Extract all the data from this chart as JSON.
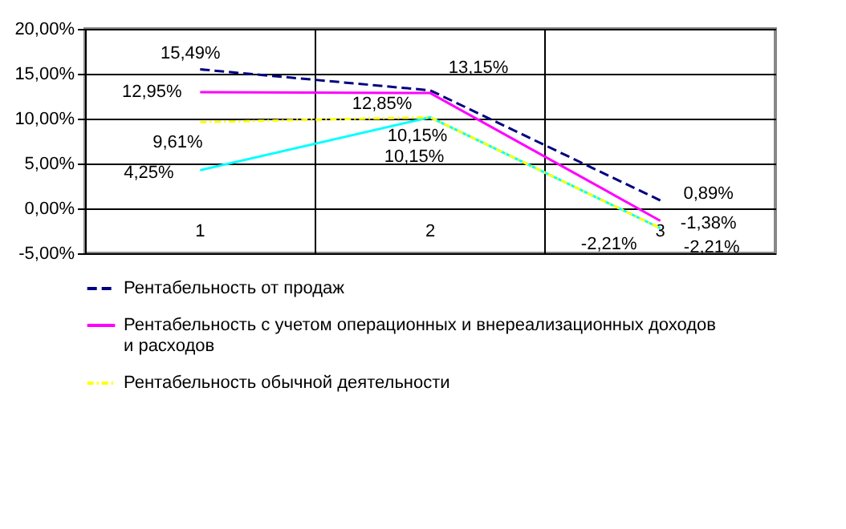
{
  "chart_data": {
    "type": "line",
    "categories": [
      "1",
      "2",
      "3"
    ],
    "series": [
      {
        "name": "Рентабельность от продаж",
        "color": "#000080",
        "line_style": "dashed",
        "values": [
          15.49,
          13.15,
          0.89
        ],
        "value_labels": [
          "15,49%",
          "13,15%",
          "0,89%"
        ]
      },
      {
        "name": "Рентабельность с учетом операционных и внереализационных доходов и расходов",
        "color": "#ff00ff",
        "line_style": "solid",
        "values": [
          12.95,
          12.85,
          -1.38
        ],
        "value_labels": [
          "12,95%",
          "12,85%",
          "-1,38%"
        ]
      },
      {
        "name": "Рентабельность обычной деятельности",
        "color": "#ffff00",
        "line_style": "dashdot",
        "values": [
          9.61,
          10.15,
          -2.21
        ],
        "value_labels": [
          "9,61%",
          "10,15%",
          "-2,21%"
        ]
      },
      {
        "color": "#00ffff",
        "line_style": "solid",
        "values": [
          4.25,
          10.15,
          -2.21
        ],
        "value_labels": [
          "4,25%",
          "10,15%",
          "-2,21%"
        ]
      }
    ],
    "ylim": [
      -5,
      20
    ],
    "yticks": [
      {
        "value": -5,
        "label": "-5,00%"
      },
      {
        "value": 0,
        "label": "0,00%"
      },
      {
        "value": 5,
        "label": "5,00%"
      },
      {
        "value": 10,
        "label": "10,00%"
      },
      {
        "value": 15,
        "label": "15,00%"
      },
      {
        "value": 20,
        "label": "20,00%"
      }
    ],
    "grid": true,
    "legend": "bottom",
    "marker": "none"
  }
}
